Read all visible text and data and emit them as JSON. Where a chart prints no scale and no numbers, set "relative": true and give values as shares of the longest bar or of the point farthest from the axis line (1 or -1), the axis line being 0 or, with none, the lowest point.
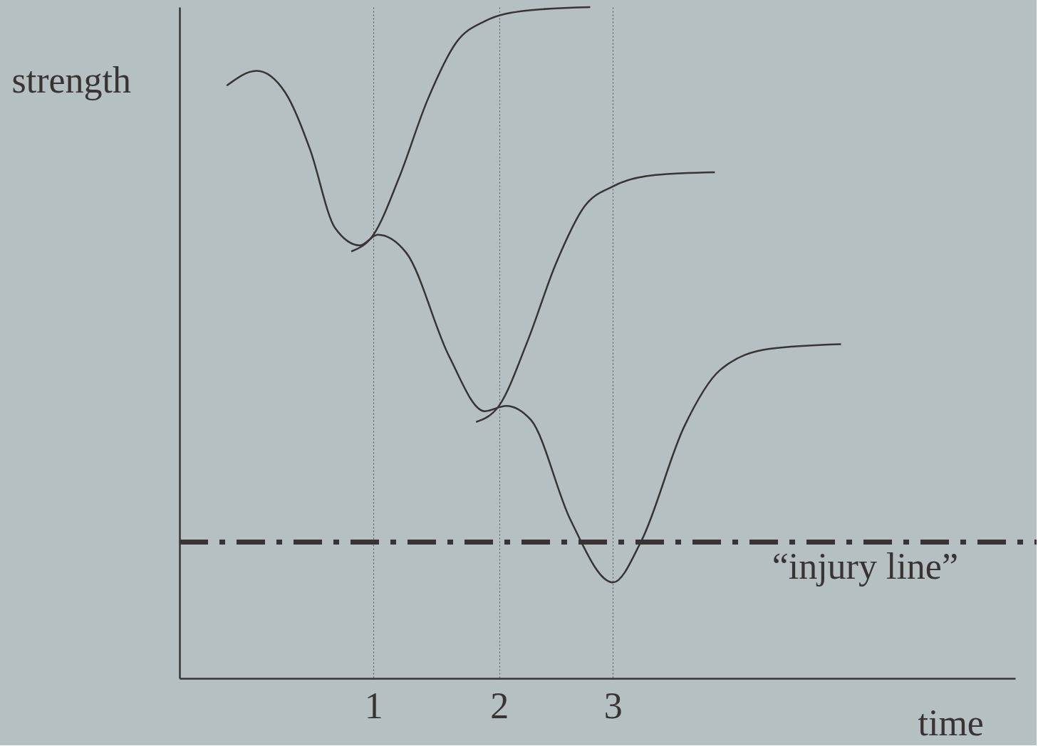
{
  "chart_data": {
    "type": "line",
    "relative": true,
    "xlabel": "time",
    "ylabel": "strength",
    "xlim": [
      -0.62,
      6.36
    ],
    "xticks": [
      {
        "value": 1,
        "label": "1"
      },
      {
        "value": 2.05,
        "label": "2"
      },
      {
        "value": 3,
        "label": "3"
      }
    ],
    "grid": "x",
    "marker": "none",
    "line_style": "solid",
    "series": [
      {
        "color": "#3a3334",
        "x": [
          -0.226,
          0.024,
          0.262,
          0.47,
          0.679,
          0.887,
          1.036,
          1.274,
          1.631,
          1.929,
          2.107,
          2.315,
          2.643,
          3.0,
          3.238,
          3.595,
          3.893,
          4.31,
          4.905
        ],
        "values": [
          0.883,
          0.905,
          0.873,
          0.788,
          0.671,
          0.645,
          0.661,
          0.634,
          0.48,
          0.398,
          0.406,
          0.385,
          0.237,
          0.143,
          0.205,
          0.375,
          0.459,
          0.491,
          0.498
        ]
      },
      {
        "color": "#3a3334",
        "x": [
          0.815,
          1.0,
          1.214,
          1.452,
          1.69,
          1.929,
          2.286,
          2.81
        ],
        "values": [
          0.636,
          0.661,
          0.746,
          0.862,
          0.947,
          0.979,
          0.995,
          1.0
        ]
      },
      {
        "color": "#3a3334",
        "x": [
          1.857,
          2.048,
          2.286,
          2.524,
          2.762,
          3.0,
          3.357,
          3.851
        ],
        "values": [
          0.382,
          0.406,
          0.502,
          0.618,
          0.703,
          0.733,
          0.75,
          0.754
        ]
      }
    ],
    "ref_lines": [
      {
        "axis": "y",
        "value": 0.203,
        "label": "“injury line”",
        "color": "#3a3334",
        "line_style": "dashdot"
      }
    ]
  }
}
